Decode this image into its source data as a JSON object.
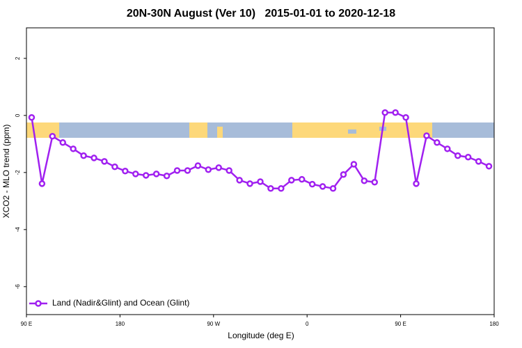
{
  "chart_data": {
    "type": "line",
    "title": "20N-30N August (Ver 10)   2015-01-01 to 2020-12-18",
    "xlabel": "Longitude (deg E)",
    "ylabel": "XCO2 - MLO trend (ppm)",
    "x": [
      95,
      105,
      115,
      125,
      135,
      145,
      155,
      165,
      175,
      185,
      195,
      205,
      215,
      225,
      235,
      245,
      255,
      265,
      275,
      285,
      295,
      305,
      315,
      325,
      335,
      345,
      355,
      365,
      375,
      385,
      395,
      405,
      415,
      425,
      435,
      445,
      455,
      465,
      475,
      485,
      495,
      505,
      515,
      525,
      535
    ],
    "series": [
      {
        "name": "Land (Nadir&Glint) and Ocean (Glint)",
        "color": "#a020f0",
        "values": [
          -0.07,
          -2.39,
          -0.73,
          -0.95,
          -1.17,
          -1.41,
          -1.49,
          -1.61,
          -1.8,
          -1.95,
          -2.05,
          -2.1,
          -2.05,
          -2.12,
          -1.93,
          -1.93,
          -1.76,
          -1.9,
          -1.83,
          -1.93,
          -2.27,
          -2.39,
          -2.32,
          -2.56,
          -2.56,
          -2.27,
          -2.24,
          -2.41,
          -2.49,
          -2.56,
          -2.07,
          -1.71,
          -2.29,
          -2.34,
          0.1,
          0.1,
          -0.07,
          -2.39,
          -0.71,
          -0.95,
          -1.17,
          -1.41,
          -1.46,
          -1.61,
          -1.78
        ]
      }
    ],
    "xlim": [
      90,
      540
    ],
    "xticks": [
      {
        "value": 90,
        "label": "90 E"
      },
      180,
      {
        "value": 270,
        "label": "90 W"
      },
      {
        "value": 360,
        "label": "0"
      },
      {
        "value": 450,
        "label": "90 E"
      },
      {
        "value": 540,
        "label": "180"
      }
    ],
    "ylim": [
      -6.98,
      3.07
    ],
    "yticks": [
      -6,
      -4,
      -2,
      0,
      2
    ],
    "legend": "bottomleft"
  }
}
